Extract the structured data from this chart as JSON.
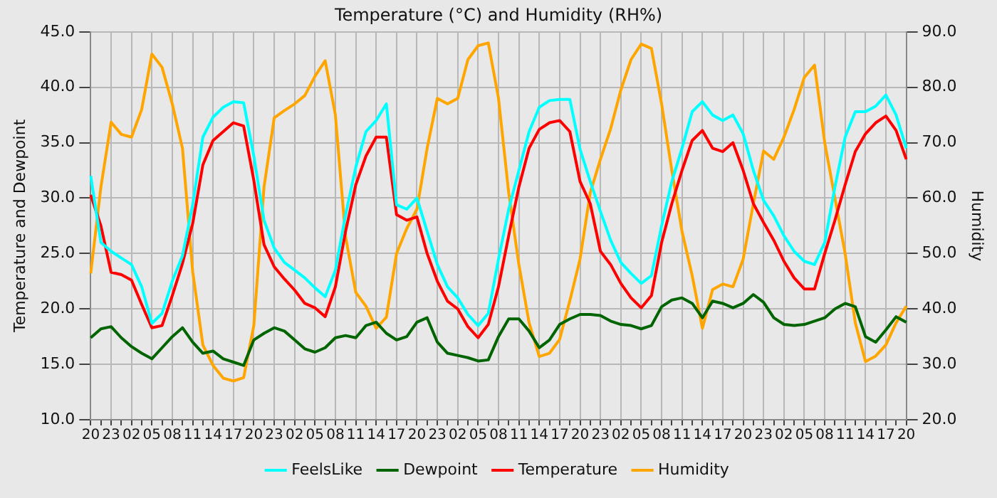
{
  "chart_data": {
    "type": "line",
    "title": "Temperature (°C) and Humidity (RH%)",
    "ylabel": "Temperature and Dewpoint",
    "y2label": "Humidity",
    "categories": [
      "20",
      null,
      "23",
      null,
      "02",
      null,
      "05",
      null,
      "08",
      null,
      "11",
      null,
      "14",
      null,
      "17",
      null,
      "20",
      null,
      "23",
      null,
      "02",
      null,
      "05",
      null,
      "08",
      null,
      "11",
      null,
      "14",
      null,
      "17",
      null,
      "20",
      null,
      "23",
      null,
      "02",
      null,
      "05",
      null,
      "08",
      null,
      "11",
      null,
      "14",
      null,
      "17",
      null,
      "20",
      null,
      "23",
      null,
      "02",
      null,
      "05",
      null,
      "08",
      null,
      "11",
      null,
      "14",
      null,
      "17",
      null,
      "20",
      null,
      "23",
      null,
      "02",
      null,
      "05",
      null,
      "08",
      null,
      "11",
      null,
      "14",
      null,
      "17",
      null,
      "20"
    ],
    "ylim": [
      10,
      45
    ],
    "yticks": [
      {
        "value": 10,
        "label": "10.0"
      },
      {
        "value": 15,
        "label": "15.0"
      },
      {
        "value": 20,
        "label": "20.0"
      },
      {
        "value": 25,
        "label": "25.0"
      },
      {
        "value": 30,
        "label": "30.0"
      },
      {
        "value": 35,
        "label": "35.0"
      },
      {
        "value": 40,
        "label": "40.0"
      },
      {
        "value": 45,
        "label": "45.0"
      }
    ],
    "y2lim": [
      20,
      90
    ],
    "y2ticks": [
      {
        "value": 20,
        "label": "20.0"
      },
      {
        "value": 30,
        "label": "30.0"
      },
      {
        "value": 40,
        "label": "40.0"
      },
      {
        "value": 50,
        "label": "50.0"
      },
      {
        "value": 60,
        "label": "60.0"
      },
      {
        "value": 70,
        "label": "70.0"
      },
      {
        "value": 80,
        "label": "80.0"
      },
      {
        "value": 90,
        "label": "90.0"
      }
    ],
    "grid": true,
    "legend": "bottom",
    "marker": "none",
    "line_style": "solid",
    "series": [
      {
        "name": "FeelsLike",
        "color": "#00ffff",
        "values": [
          32.0,
          26.0,
          25.2,
          24.6,
          24.0,
          22.0,
          18.7,
          19.6,
          22.5,
          24.8,
          29.4,
          35.5,
          37.3,
          38.2,
          38.7,
          38.6,
          33.8,
          28.0,
          25.5,
          24.2,
          23.5,
          22.8,
          21.9,
          21.1,
          23.5,
          28.5,
          32.8,
          36.0,
          37.0,
          38.5,
          29.4,
          29.0,
          30.0,
          27.0,
          24.0,
          22.0,
          21.0,
          19.5,
          18.5,
          19.6,
          24.5,
          29.0,
          32.5,
          36.0,
          38.2,
          38.8,
          38.9,
          38.9,
          34.4,
          31.5,
          28.8,
          26.2,
          24.2,
          23.2,
          22.3,
          23.0,
          27.5,
          31.5,
          34.5,
          37.8,
          38.7,
          37.5,
          37.0,
          37.5,
          35.8,
          32.5,
          29.8,
          28.4,
          26.6,
          25.2,
          24.3,
          24.0,
          26.0,
          31.0,
          35.5,
          37.8,
          37.8,
          38.3,
          39.3,
          37.5,
          34.5
        ]
      },
      {
        "name": "Dewpoint",
        "color": "#006400",
        "values": [
          17.4,
          18.2,
          18.4,
          17.4,
          16.6,
          16.0,
          15.5,
          16.5,
          17.5,
          18.3,
          17.0,
          16.0,
          16.2,
          15.5,
          15.2,
          14.9,
          17.2,
          17.8,
          18.3,
          18.0,
          17.2,
          16.4,
          16.1,
          16.5,
          17.4,
          17.6,
          17.4,
          18.5,
          18.8,
          17.8,
          17.2,
          17.5,
          18.8,
          19.2,
          17.0,
          16.0,
          15.8,
          15.6,
          15.3,
          15.4,
          17.5,
          19.1,
          19.1,
          18.0,
          16.5,
          17.2,
          18.6,
          19.1,
          19.5,
          19.5,
          19.4,
          18.9,
          18.6,
          18.5,
          18.2,
          18.5,
          20.2,
          20.8,
          21.0,
          20.5,
          19.2,
          20.7,
          20.5,
          20.1,
          20.5,
          21.3,
          20.6,
          19.2,
          18.6,
          18.5,
          18.6,
          18.9,
          19.2,
          20.0,
          20.5,
          20.2,
          17.5,
          17.0,
          18.1,
          19.3,
          18.8
        ]
      },
      {
        "name": "Temperature",
        "color": "#ff0000",
        "values": [
          30.3,
          27.5,
          23.3,
          23.1,
          22.6,
          20.4,
          18.3,
          18.5,
          21.2,
          24.1,
          27.7,
          33.0,
          35.2,
          36.0,
          36.8,
          36.5,
          31.6,
          25.8,
          23.8,
          22.7,
          21.7,
          20.5,
          20.1,
          19.3,
          22.0,
          27.0,
          31.2,
          33.8,
          35.5,
          35.5,
          28.5,
          28.0,
          28.3,
          25.0,
          22.5,
          20.7,
          20.0,
          18.4,
          17.4,
          18.6,
          22.0,
          26.6,
          31.0,
          34.5,
          36.2,
          36.8,
          37.0,
          36.0,
          31.5,
          29.5,
          25.2,
          24.0,
          22.3,
          21.0,
          20.1,
          21.2,
          26.0,
          29.5,
          32.5,
          35.2,
          36.1,
          34.5,
          34.2,
          35.0,
          32.5,
          29.5,
          27.8,
          26.2,
          24.3,
          22.8,
          21.8,
          21.8,
          25.0,
          28.0,
          31.2,
          34.2,
          35.8,
          36.8,
          37.4,
          36.1,
          33.5
        ]
      },
      {
        "name": "Humidity",
        "color": "#ffa500",
        "axis": "y2",
        "values": [
          46.4,
          62.0,
          73.7,
          71.5,
          71.0,
          76.0,
          86.0,
          83.6,
          77.0,
          69.0,
          46.8,
          33.5,
          29.8,
          27.5,
          27.0,
          27.6,
          37.0,
          62.0,
          74.5,
          75.8,
          77.0,
          78.5,
          82.0,
          84.8,
          75.0,
          53.0,
          43.0,
          40.5,
          36.5,
          38.5,
          50.0,
          54.5,
          58.0,
          69.0,
          78.0,
          77.0,
          78.0,
          85.0,
          87.5,
          88.0,
          78.0,
          61.0,
          48.0,
          37.5,
          31.4,
          32.0,
          34.5,
          41.5,
          49.0,
          61.0,
          67.0,
          72.5,
          79.5,
          85.0,
          87.8,
          87.0,
          77.0,
          65.0,
          54.0,
          46.0,
          36.5,
          43.5,
          44.5,
          44.0,
          49.0,
          59.0,
          68.5,
          67.0,
          71.0,
          76.0,
          81.8,
          84.0,
          70.0,
          60.0,
          50.0,
          37.5,
          30.5,
          31.5,
          33.5,
          37.5,
          40.5
        ]
      }
    ]
  }
}
